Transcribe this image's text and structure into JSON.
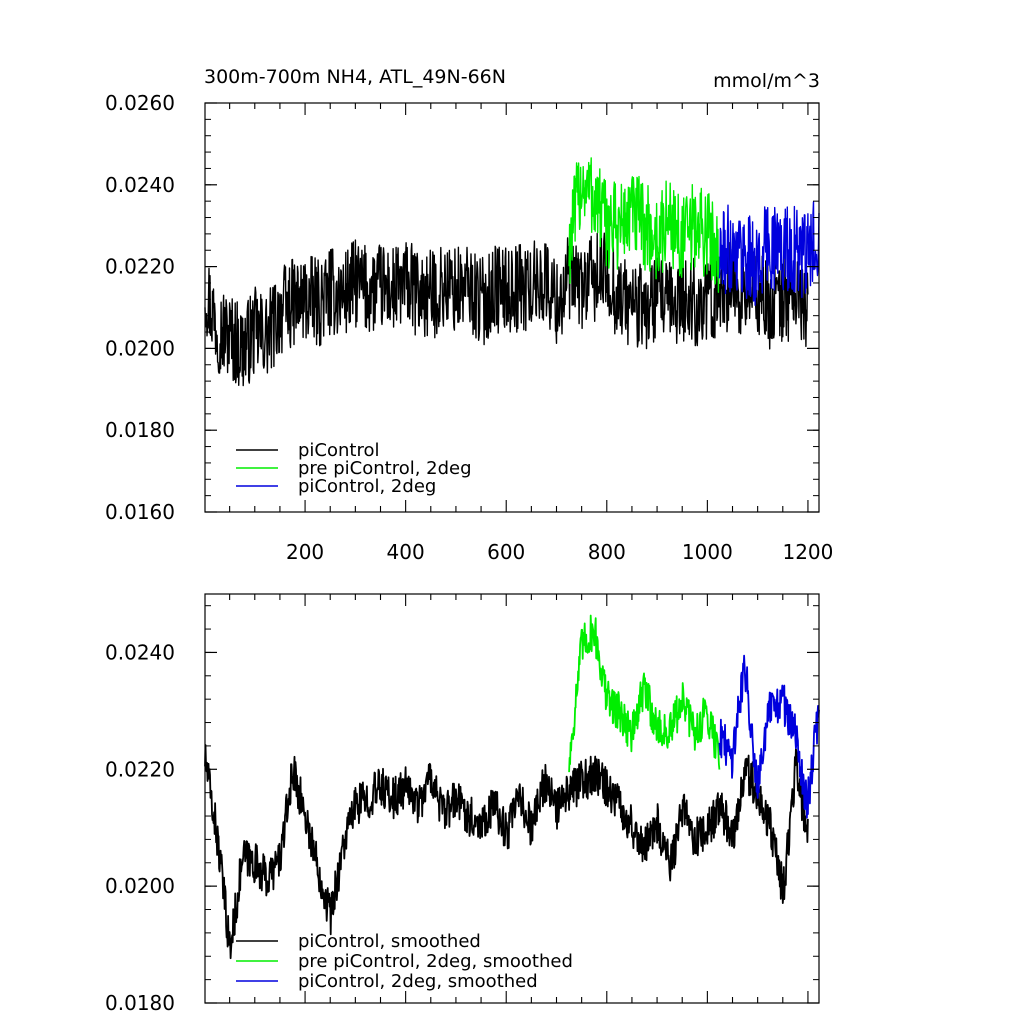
{
  "figure": {
    "title_left": "300m-700m NH4, ATL_49N-66N",
    "title_right": "mmol/m^3"
  },
  "chart_data": [
    {
      "type": "line",
      "title": "300m-700m NH4, ATL_49N-66N",
      "units": "mmol/m^3",
      "xlim": [
        1,
        1222
      ],
      "ylim": [
        0.016,
        0.026
      ],
      "grid": false,
      "legend_position": "bottom-left",
      "x_tick_labels": [
        "200",
        "400",
        "600",
        "800",
        "1000",
        "1200"
      ],
      "y_tick_labels": [
        "0.0160",
        "0.0180",
        "0.0200",
        "0.0220",
        "0.0240",
        "0.0260"
      ],
      "series": [
        {
          "name": "piControl",
          "color": "#000000",
          "x_start": 1,
          "x_end": 1200,
          "sample_every": 25,
          "values": [
            0.0215,
            0.0205,
            0.0203,
            0.02,
            0.0204,
            0.0203,
            0.0209,
            0.0211,
            0.0212,
            0.0211,
            0.0214,
            0.0213,
            0.0216,
            0.0214,
            0.0215,
            0.0214,
            0.0216,
            0.0213,
            0.0213,
            0.0215,
            0.0214,
            0.0215,
            0.0211,
            0.0215,
            0.0214,
            0.0215,
            0.0215,
            0.0217,
            0.0211,
            0.0217,
            0.0215,
            0.0217,
            0.0218,
            0.0212,
            0.0211,
            0.0209,
            0.0213,
            0.021,
            0.0212,
            0.0211,
            0.0211,
            0.0215,
            0.0215,
            0.0213,
            0.0214,
            0.021,
            0.0213,
            0.0212,
            0.0211
          ]
        },
        {
          "name": "pre piControl, 2deg",
          "color": "#00ee00",
          "x_start": 725,
          "x_end": 1024,
          "sample_every": 25,
          "values": [
            0.0225,
            0.0241,
            0.0237,
            0.023,
            0.023,
            0.0233,
            0.023,
            0.0226,
            0.0232,
            0.0226,
            0.023,
            0.0228,
            0.0224
          ]
        },
        {
          "name": "piControl, 2deg",
          "color": "#0000dd",
          "x_start": 1024,
          "x_end": 1222,
          "sample_every": 25,
          "values": [
            0.0222,
            0.0225,
            0.0223,
            0.022,
            0.0226,
            0.0224,
            0.0224,
            0.0222,
            0.023
          ]
        }
      ]
    },
    {
      "type": "line",
      "title": "",
      "xlim": [
        1,
        1222
      ],
      "ylim": [
        0.018,
        0.025
      ],
      "grid": false,
      "legend_position": "bottom-left",
      "x_tick_labels": [],
      "y_tick_labels": [
        "0.0180",
        "0.0200",
        "0.0220",
        "0.0240"
      ],
      "series": [
        {
          "name": "piControl, smoothed",
          "color": "#000000",
          "x_start": 1,
          "x_end": 1200,
          "sample_every": 25,
          "values": [
            0.0222,
            0.0208,
            0.0189,
            0.0205,
            0.0204,
            0.0201,
            0.0205,
            0.022,
            0.0212,
            0.0203,
            0.0195,
            0.0207,
            0.0214,
            0.0215,
            0.0217,
            0.0215,
            0.0217,
            0.0214,
            0.0219,
            0.0212,
            0.0215,
            0.0212,
            0.0211,
            0.0214,
            0.0209,
            0.0215,
            0.021,
            0.0218,
            0.0213,
            0.0216,
            0.0218,
            0.0219,
            0.0217,
            0.0214,
            0.021,
            0.0207,
            0.0211,
            0.0203,
            0.0213,
            0.0208,
            0.021,
            0.0213,
            0.0209,
            0.022,
            0.0216,
            0.021,
            0.0199,
            0.0221,
            0.0208
          ]
        },
        {
          "name": "pre piControl, 2deg, smoothed",
          "color": "#00ee00",
          "x_start": 725,
          "x_end": 1024,
          "sample_every": 25,
          "values": [
            0.0221,
            0.0241,
            0.0244,
            0.0232,
            0.023,
            0.0226,
            0.0234,
            0.0227,
            0.0226,
            0.0232,
            0.0226,
            0.023,
            0.0222
          ]
        },
        {
          "name": "piControl, 2deg, smoothed",
          "color": "#0000dd",
          "x_start": 1024,
          "x_end": 1222,
          "sample_every": 25,
          "values": [
            0.0226,
            0.0222,
            0.0238,
            0.0218,
            0.023,
            0.0232,
            0.0226,
            0.0214,
            0.0232
          ]
        }
      ]
    }
  ]
}
